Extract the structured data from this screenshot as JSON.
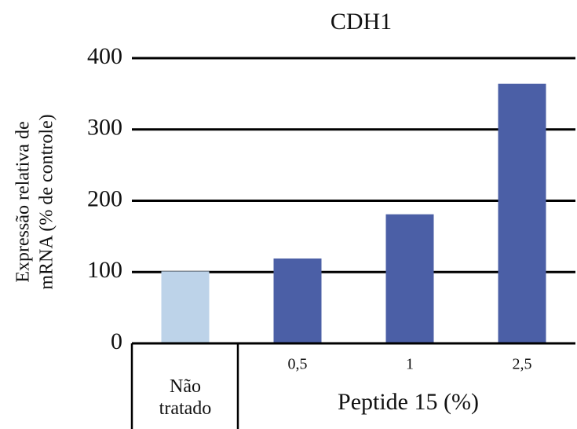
{
  "chart_data": {
    "type": "bar",
    "title": "CDH1",
    "y_label": [
      "Expressão relativa de",
      "mRNA (% de controle)"
    ],
    "x_group_label": "Peptide 15 (%)",
    "categories": [
      "Não tratado",
      "0,5",
      "1",
      "2,5"
    ],
    "values": [
      101,
      119,
      181,
      364
    ],
    "colors": [
      "#bdd3e9",
      "#4b5fa6",
      "#4b5fa6",
      "#4b5fa6"
    ],
    "ylim": [
      0,
      400
    ],
    "yticks": [
      0,
      100,
      200,
      300,
      400
    ],
    "grid": true
  }
}
